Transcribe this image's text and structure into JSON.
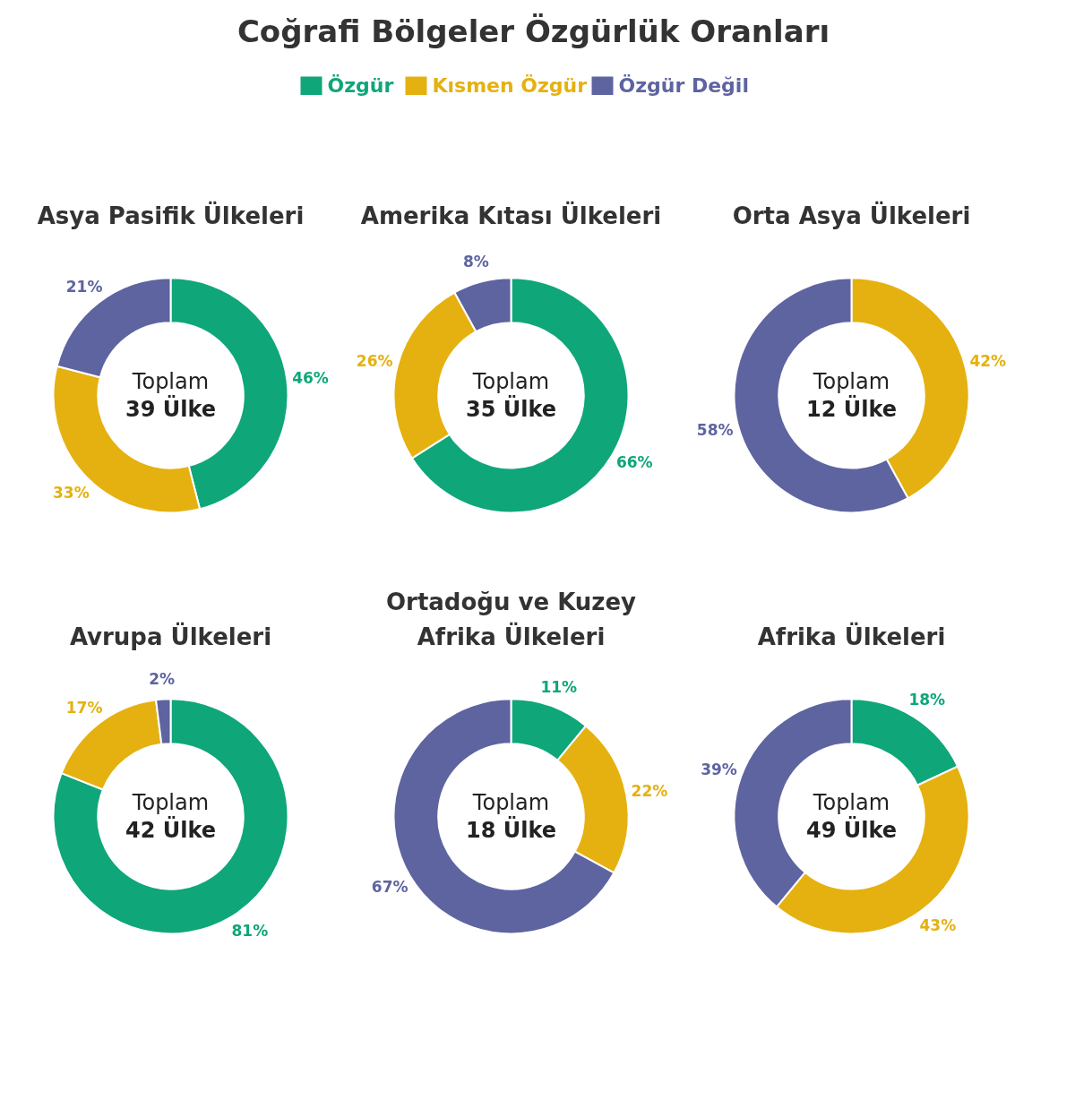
{
  "chart_data": [
    {
      "type": "other",
      "title": "Coğrafi Bölgeler Özgürlük Oranları"
    },
    {
      "type": "donut",
      "title": "Asya Pasifik Ülkeleri",
      "categories": [
        "Özgür",
        "Kısmen Özgür",
        "Özgür Değil"
      ],
      "values": [
        46,
        33,
        21
      ],
      "colors": [
        "#0fa67a",
        "#e5b110",
        "#5e64a0"
      ],
      "legend": "top",
      "value_labels": [
        "46%",
        "33%",
        "21%"
      ],
      "annotations": [
        "Toplam",
        "39 Ülke"
      ]
    },
    {
      "type": "donut",
      "title": "Amerika Kıtası Ülkeleri",
      "categories": [
        null,
        null,
        null
      ],
      "values": [
        66,
        26,
        8
      ],
      "colors": [
        "#0fa67a",
        "#e5b110",
        "#5e64a0"
      ],
      "value_labels": [
        "66%",
        "26%",
        "8%"
      ],
      "annotations": [
        "Toplam",
        "35 Ülke"
      ]
    },
    {
      "type": "donut",
      "title": "Orta Asya Ülkeleri",
      "categories": [
        null,
        null
      ],
      "values": [
        42,
        58
      ],
      "colors": [
        "#e5b110",
        "#5e64a0"
      ],
      "value_labels": [
        "42%",
        "58%"
      ],
      "annotations": [
        "Toplam",
        "12 Ülke"
      ]
    },
    {
      "type": "donut",
      "title": "Avrupa Ülkeleri",
      "categories": [
        null,
        null,
        null
      ],
      "values": [
        81,
        17,
        2
      ],
      "colors": [
        "#0fa67a",
        "#e5b110",
        "#5e64a0"
      ],
      "value_labels": [
        "81%",
        "17%",
        "2%"
      ],
      "annotations": [
        "Toplam",
        "42 Ülke"
      ]
    },
    {
      "type": "donut",
      "title": "Ortadoğu ve Kuzey Afrika Ülkeleri",
      "categories": [
        null,
        null,
        null
      ],
      "values": [
        11,
        22,
        67
      ],
      "colors": [
        "#0fa67a",
        "#e5b110",
        "#5e64a0"
      ],
      "value_labels": [
        "11%",
        "22%",
        "67%"
      ],
      "annotations": [
        "Toplam",
        "18 Ülke"
      ]
    },
    {
      "type": "donut",
      "title": "Afrika Ülkeleri",
      "categories": [
        null,
        null,
        null
      ],
      "values": [
        18,
        43,
        39
      ],
      "colors": [
        "#0fa67a",
        "#e5b110",
        "#5e64a0"
      ],
      "value_labels": [
        "18%",
        "43%",
        "39%"
      ],
      "annotations": [
        "Toplam",
        "49 Ülke"
      ]
    }
  ]
}
